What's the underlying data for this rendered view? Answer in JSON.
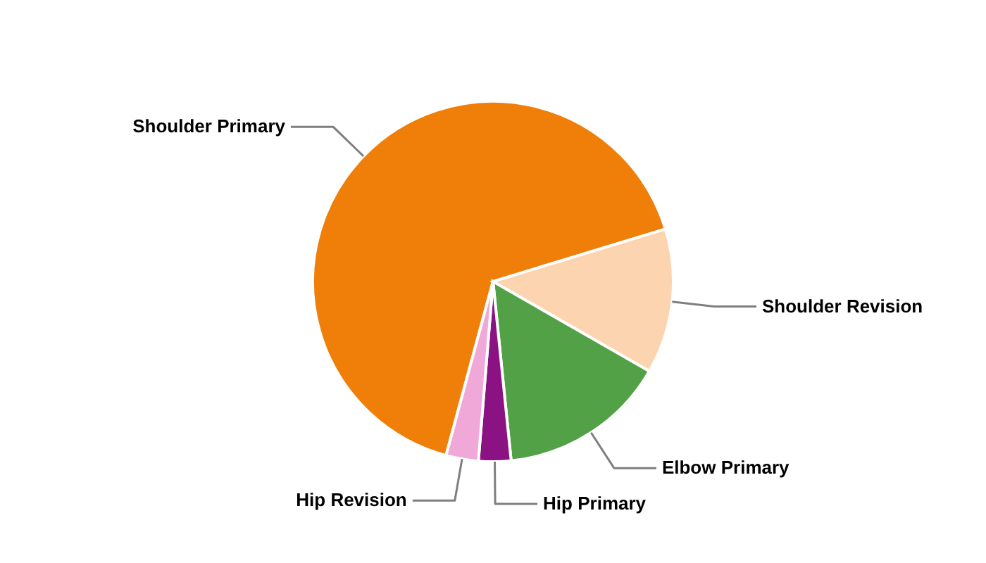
{
  "chart_data": {
    "type": "pie",
    "categories": [
      "Shoulder Primary",
      "Shoulder Revision",
      "Elbow Primary",
      "Hip Primary",
      "Hip Revision"
    ],
    "values": [
      66.1,
      13.0,
      15.1,
      2.9,
      2.9
    ],
    "colors": [
      "#f07f09",
      "#fcd4b0",
      "#53a146",
      "#8b1283",
      "#f0a8d8"
    ]
  }
}
